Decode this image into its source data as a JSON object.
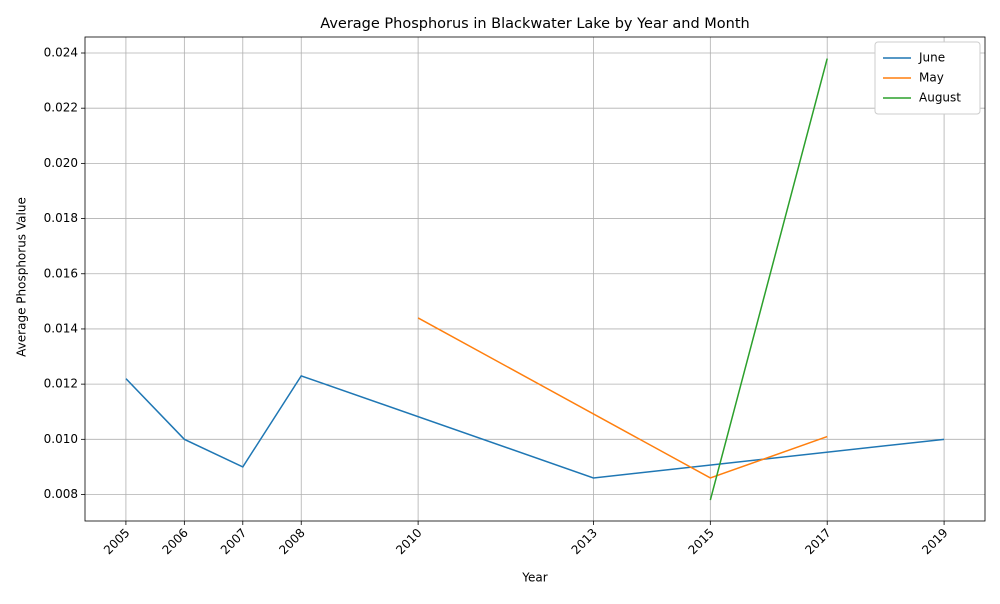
{
  "chart_data": {
    "type": "line",
    "title": "Average Phosphorus in Blackwater Lake by Year and Month",
    "x_label": "Year",
    "y_label": "Average Phosphorus Value",
    "series": [
      {
        "name": "June",
        "color": "#1f77b4",
        "x": [
          2005,
          2006,
          2007,
          2008,
          2013,
          2019
        ],
        "values": [
          0.0122,
          0.01,
          0.009,
          0.0123,
          0.0086,
          0.01
        ]
      },
      {
        "name": "May",
        "color": "#ff7f0e",
        "x": [
          2010,
          2015,
          2017
        ],
        "values": [
          0.0144,
          0.0086,
          0.0101
        ]
      },
      {
        "name": "August",
        "color": "#2ca02c",
        "x": [
          2015,
          2017
        ],
        "values": [
          0.0078,
          0.0238
        ]
      }
    ],
    "xlim": [
      2004.3,
      2019.7
    ],
    "xticks": [
      2005,
      2006,
      2007,
      2008,
      2010,
      2013,
      2015,
      2017,
      2019
    ],
    "ylim": [
      0.00704,
      0.02458
    ],
    "yticks": [
      0.008,
      {
        "value": 0.01,
        "label": "0.010"
      },
      0.012,
      0.014,
      0.016,
      0.018,
      {
        "value": 0.02,
        "label": "0.020"
      },
      0.022,
      0.024
    ],
    "grid": true,
    "legend": "upper right"
  }
}
